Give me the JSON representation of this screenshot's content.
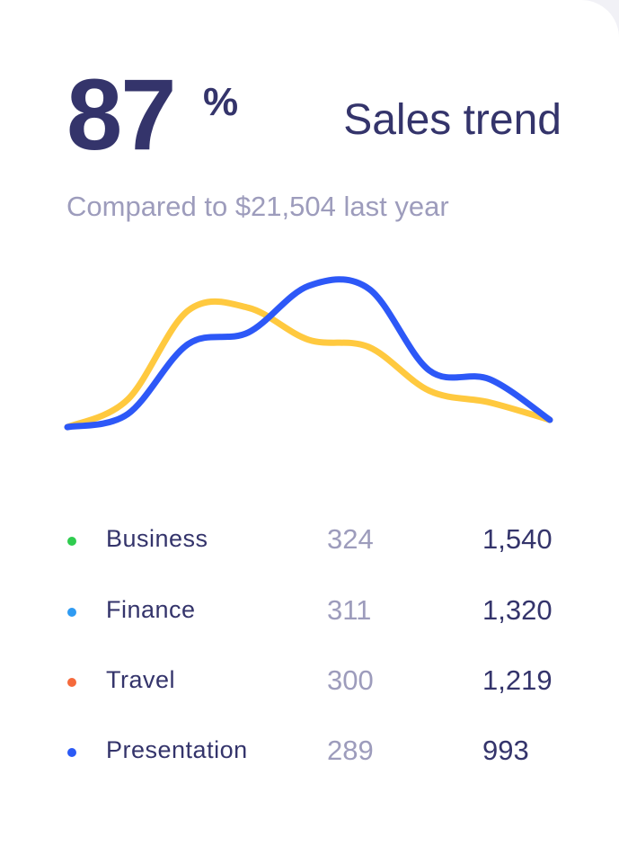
{
  "header": {
    "value": "87",
    "unit": "%",
    "title": "Sales trend",
    "subtitle": "Compared to $21,504 last year"
  },
  "legend": [
    {
      "label": "Business",
      "count": "324",
      "total": "1,540",
      "color": "#2fcc4f"
    },
    {
      "label": "Finance",
      "count": "311",
      "total": "1,320",
      "color": "#2f9bf2"
    },
    {
      "label": "Travel",
      "count": "300",
      "total": "1,219",
      "color": "#f56a3c"
    },
    {
      "label": "Presentation",
      "count": "289",
      "total": "993",
      "color": "#2b5af5"
    }
  ],
  "chart_data": {
    "type": "line",
    "grid": false,
    "axes_visible": false,
    "ylim": [
      0,
      100
    ],
    "x": [
      0,
      1,
      2,
      3,
      4,
      5,
      6,
      7,
      8
    ],
    "series": [
      {
        "color": "#ffc93f",
        "values": [
          3,
          22,
          83,
          85,
          63,
          58,
          28,
          20,
          8
        ]
      },
      {
        "color": "#2d58f7",
        "values": [
          3,
          12,
          60,
          68,
          100,
          98,
          42,
          36,
          8
        ]
      }
    ]
  }
}
